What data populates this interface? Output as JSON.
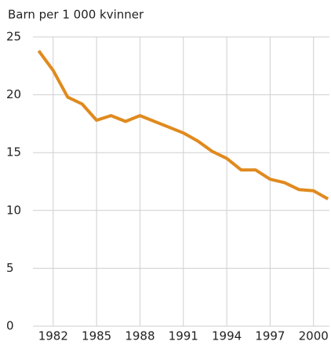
{
  "chart_data": {
    "type": "line",
    "title": "Barn per 1 000 kvinner",
    "x": [
      1981,
      1982,
      1983,
      1984,
      1985,
      1986,
      1987,
      1988,
      1989,
      1990,
      1991,
      1992,
      1993,
      1994,
      1995,
      1996,
      1997,
      1998,
      1999,
      2000,
      2001
    ],
    "series": [
      {
        "color": "#e08a1e",
        "values": [
          23.8,
          22.1,
          19.8,
          19.2,
          17.8,
          18.2,
          17.7,
          18.2,
          17.7,
          17.2,
          16.7,
          16.0,
          15.1,
          14.5,
          13.5,
          13.5,
          12.7,
          12.4,
          11.8,
          11.7,
          11.0
        ]
      }
    ],
    "xlim": [
      1980.6,
      2001.1
    ],
    "xticks": [
      1982,
      1985,
      1988,
      1991,
      1994,
      1997,
      2000
    ],
    "ylim": [
      0,
      25
    ],
    "yticks": [
      0,
      5,
      10,
      15,
      20,
      25
    ],
    "grid": true
  }
}
